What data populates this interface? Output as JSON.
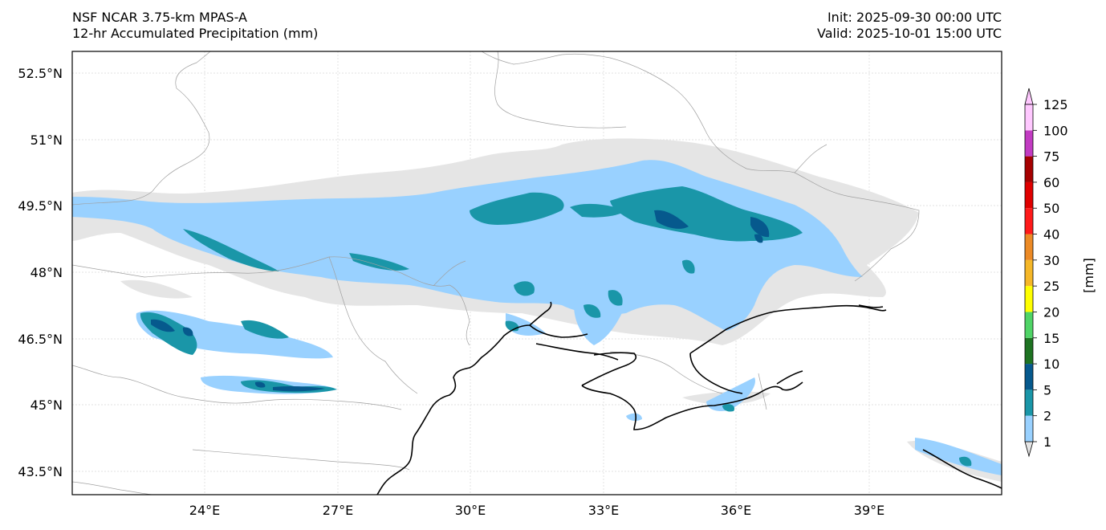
{
  "header": {
    "model": "NSF NCAR 3.75-km MPAS-A",
    "field": "12-hr Accumulated Precipitation (mm)",
    "init": "Init: 2025-09-30 00:00 UTC",
    "valid": "Valid: 2025-10-01 15:00 UTC"
  },
  "axes": {
    "lat_ticks": [
      "52.5°N",
      "51°N",
      "49.5°N",
      "48°N",
      "46.5°N",
      "45°N",
      "43.5°N"
    ],
    "lon_ticks": [
      "24°E",
      "27°E",
      "30°E",
      "33°E",
      "36°E",
      "39°E"
    ]
  },
  "colorbar": {
    "unit_label": "[mm]",
    "levels": [
      "1",
      "2",
      "5",
      "10",
      "15",
      "20",
      "25",
      "30",
      "40",
      "50",
      "60",
      "75",
      "100",
      "125"
    ],
    "colors": [
      "#e5e5e5",
      "#99d1ff",
      "#1a96a8",
      "#06598d",
      "#1e7322",
      "#4fd466",
      "#ffff00",
      "#f5b728",
      "#ec8a25",
      "#ff1a1a",
      "#e00000",
      "#a60000",
      "#c23bc2",
      "#ffc8ff"
    ]
  },
  "map_colors": {
    "light": "#e5e5e5",
    "blue": "#99d1ff",
    "teal": "#1a96a8",
    "dark": "#06598d",
    "coast": "#000000",
    "border": "#a0a0a0"
  }
}
